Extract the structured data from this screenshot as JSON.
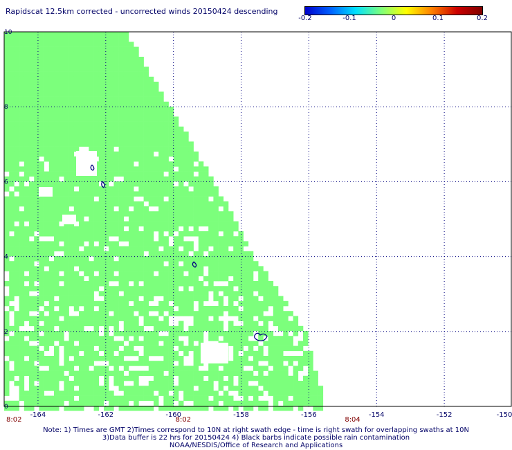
{
  "title": "Rapidscat 12.5km corrected - uncorrected winds 20150424 descending",
  "colorbar": {
    "ticks": [
      "-0.2",
      "-0.1",
      "0",
      "0.1",
      "0.2"
    ],
    "range": [
      -0.2,
      0.2
    ],
    "colors": [
      "#0000cc",
      "#0060ff",
      "#00e0ff",
      "#7cff7c",
      "#ffff00",
      "#ff8000",
      "#cc0000",
      "#800000"
    ]
  },
  "chart_data": {
    "type": "heatmap",
    "xlim": [
      -165,
      -150
    ],
    "ylim": [
      0,
      10
    ],
    "x_ticks": [
      "-164",
      "-162",
      "-160",
      "-158",
      "-156",
      "-154",
      "-152",
      "-150"
    ],
    "y_ticks": [
      "0",
      "2",
      "4",
      "6",
      "8",
      "10"
    ],
    "time_labels": [
      {
        "lon": -165,
        "text": "8:02"
      },
      {
        "lon": -160,
        "text": "8:02"
      },
      {
        "lon": -155,
        "text": "8:04"
      }
    ],
    "swath_right_edge": [
      {
        "lat": 10.0,
        "lon": -161.4
      },
      {
        "lat": 8.0,
        "lon": -160.1
      },
      {
        "lat": 6.0,
        "lon": -158.8
      },
      {
        "lat": 4.0,
        "lon": -157.6
      },
      {
        "lat": 2.0,
        "lon": -156.1
      },
      {
        "lat": 0.0,
        "lon": -155.5
      }
    ],
    "dominant_value": 0.0,
    "fill_color": "#7cff7c",
    "grid": true,
    "grid_style": "dotted"
  },
  "notes": [
    "Note: 1) Times are GMT 2)Times correspond to 10N at right swath edge - time is right swath for overlapping swaths at 10N",
    "3)Data buffer is 22 hrs for 20150424 4) Black barbs indicate possible rain contamination",
    "NOAA/NESDIS/Office of Research and Applications"
  ]
}
